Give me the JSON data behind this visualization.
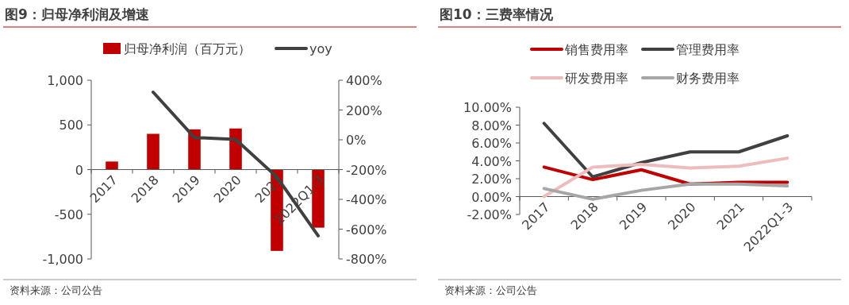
{
  "chart_data": [
    {
      "type": "bar",
      "title": "图9：归母净利润及增速",
      "categories": [
        "2017",
        "2018",
        "2019",
        "2020",
        "2021",
        "2022Q1-3"
      ],
      "series": [
        {
          "name": "归母净利润（百万元）",
          "color": "#c00000",
          "values": [
            90,
            400,
            450,
            460,
            -910,
            -650
          ]
        },
        {
          "name": "yoy",
          "type": "line",
          "axis": "y2",
          "color": "#404040",
          "values": [
            null,
            320,
            15,
            3,
            -250,
            -645
          ]
        }
      ],
      "ylim": [
        -1000,
        1000
      ],
      "yticks": [
        {
          "value": -1000,
          "label": "-1,000"
        },
        -500,
        0,
        500,
        {
          "value": 1000,
          "label": "1,000"
        }
      ],
      "y2lim": [
        -800,
        400
      ],
      "y2ticks": [
        {
          "value": -800,
          "label": "-800%"
        },
        {
          "value": -600,
          "label": "-600%"
        },
        {
          "value": -400,
          "label": "-400%"
        },
        {
          "value": -200,
          "label": "-200%"
        },
        {
          "value": 0,
          "label": "0%"
        },
        {
          "value": 200,
          "label": "200%"
        },
        {
          "value": 400,
          "label": "400%"
        }
      ],
      "legend": "top",
      "annotations": [
        "资料来源：公司公告"
      ]
    },
    {
      "type": "line",
      "title": "图10：三费率情况",
      "categories": [
        "2017",
        "2018",
        "2019",
        "2020",
        "2021",
        "2022Q1-3"
      ],
      "series": [
        {
          "name": "销售费用率",
          "color": "#c00000",
          "values": [
            3.3,
            1.9,
            3.0,
            1.4,
            1.6,
            1.6
          ]
        },
        {
          "name": "管理费用率",
          "color": "#404040",
          "values": [
            8.2,
            2.2,
            3.8,
            5.0,
            5.0,
            6.8
          ]
        },
        {
          "name": "研发费用率",
          "color": "#eebcbc",
          "values": [
            0.0,
            3.3,
            3.6,
            3.2,
            3.4,
            4.3
          ]
        },
        {
          "name": "财务费用率",
          "color": "#a6a6a6",
          "values": [
            0.9,
            -0.3,
            0.7,
            1.4,
            1.4,
            1.2
          ]
        }
      ],
      "ylim": [
        -2,
        10
      ],
      "yticks": [
        {
          "value": -2,
          "label": "-2.00%"
        },
        {
          "value": 0,
          "label": "0.00%"
        },
        {
          "value": 2,
          "label": "2.00%"
        },
        {
          "value": 4,
          "label": "4.00%"
        },
        {
          "value": 6,
          "label": "6.00%"
        },
        {
          "value": 8,
          "label": "8.00%"
        },
        {
          "value": 10,
          "label": "10.00%"
        }
      ],
      "legend": "top",
      "annotations": [
        "资料来源：公司公告"
      ]
    }
  ]
}
